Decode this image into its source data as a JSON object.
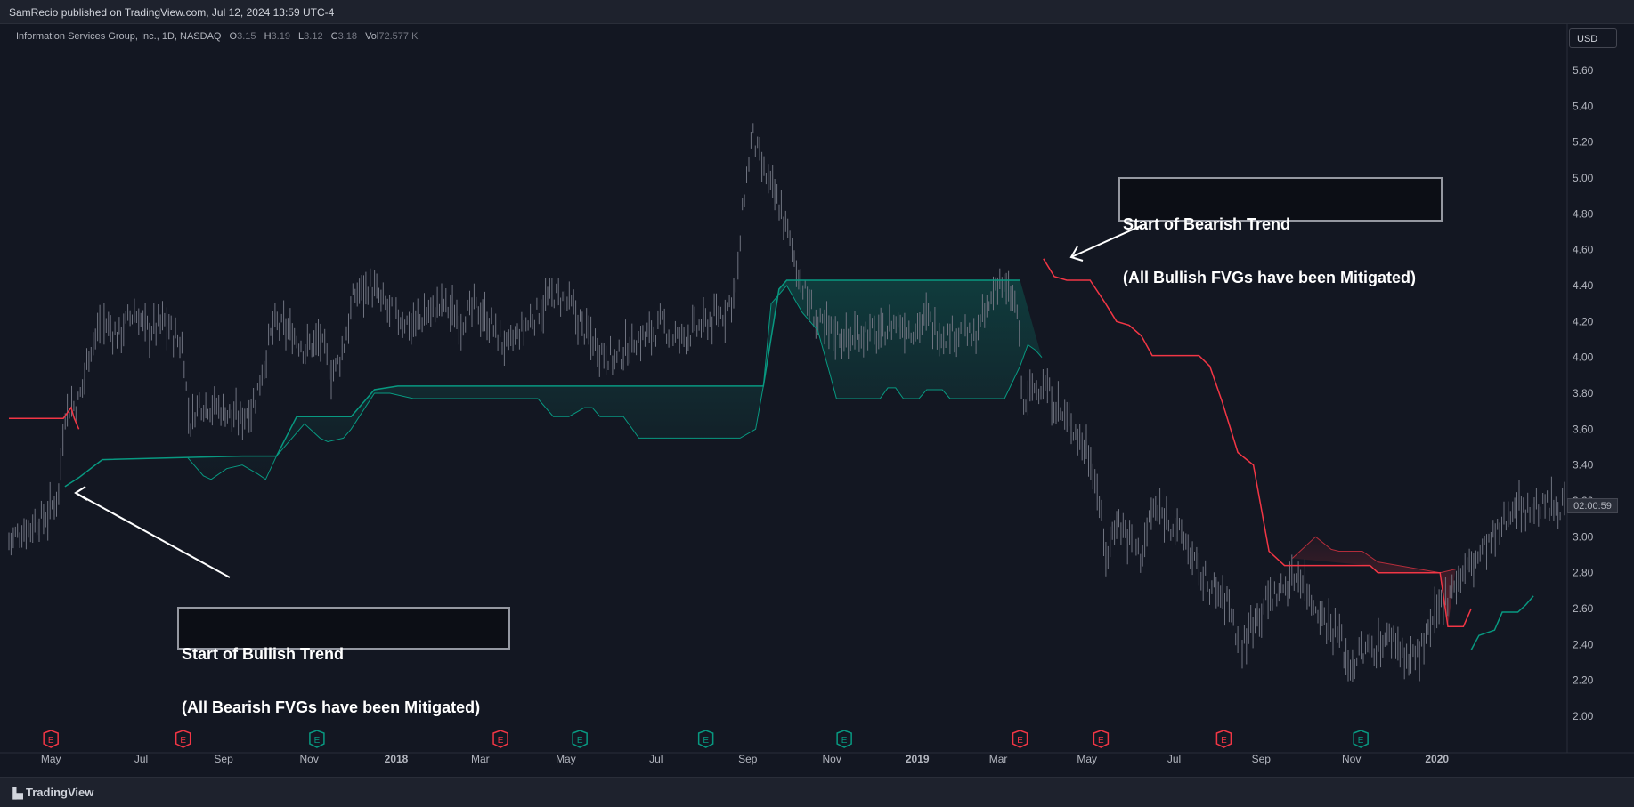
{
  "header": {
    "published_line": "SamRecio published on TradingView.com, Jul 12, 2024 13:59 UTC-4"
  },
  "legend": {
    "symbol": "Information Services Group, Inc., 1D, NASDAQ",
    "open_label": "O",
    "open": "3.15",
    "high_label": "H",
    "high": "3.19",
    "low_label": "L",
    "low": "3.12",
    "close_label": "C",
    "close": "3.18",
    "vol_label": "Vol",
    "vol": "72.577 K"
  },
  "price_scale": {
    "currency": "USD",
    "countdown": "02:00:59"
  },
  "annotations": {
    "bullish_line1": "Start of Bullish Trend",
    "bullish_line2": "(All Bearish FVGs have been Mitigated)",
    "bearish_line1": "Start of Bearish Trend",
    "bearish_line2": "(All Bullish FVGs have been Mitigated)"
  },
  "footer": {
    "brand": "TradingView"
  },
  "colors": {
    "bull": "#089981",
    "bear": "#f23645",
    "candle": "#6f7380",
    "background": "#131722"
  },
  "chart_data": {
    "type": "line",
    "title": "",
    "ylim": [
      1.9,
      5.75
    ],
    "y_ticks": [
      "2.00",
      "2.20",
      "2.40",
      "2.60",
      "2.80",
      "3.00",
      "3.20",
      "3.40",
      "3.60",
      "3.80",
      "4.00",
      "4.20",
      "4.40",
      "4.60",
      "4.80",
      "5.00",
      "5.20",
      "5.40",
      "5.60"
    ],
    "x_ticks": [
      {
        "label": "May",
        "pos": 0.027,
        "bold": false
      },
      {
        "label": "Jul",
        "pos": 0.085,
        "bold": false
      },
      {
        "label": "Sep",
        "pos": 0.138,
        "bold": false
      },
      {
        "label": "Nov",
        "pos": 0.193,
        "bold": false
      },
      {
        "label": "2018",
        "pos": 0.249,
        "bold": true
      },
      {
        "label": "Mar",
        "pos": 0.303,
        "bold": false
      },
      {
        "label": "May",
        "pos": 0.358,
        "bold": false
      },
      {
        "label": "Jul",
        "pos": 0.416,
        "bold": false
      },
      {
        "label": "Sep",
        "pos": 0.475,
        "bold": false
      },
      {
        "label": "Nov",
        "pos": 0.529,
        "bold": false
      },
      {
        "label": "2019",
        "pos": 0.584,
        "bold": true
      },
      {
        "label": "Mar",
        "pos": 0.636,
        "bold": false
      },
      {
        "label": "May",
        "pos": 0.693,
        "bold": false
      },
      {
        "label": "Jul",
        "pos": 0.749,
        "bold": false
      },
      {
        "label": "Sep",
        "pos": 0.805,
        "bold": false
      },
      {
        "label": "Nov",
        "pos": 0.863,
        "bold": false
      },
      {
        "label": "2020",
        "pos": 0.918,
        "bold": true
      }
    ],
    "earnings": [
      {
        "pos": 0.027,
        "type": "miss"
      },
      {
        "pos": 0.112,
        "type": "miss"
      },
      {
        "pos": 0.198,
        "type": "beat"
      },
      {
        "pos": 0.316,
        "type": "miss"
      },
      {
        "pos": 0.367,
        "type": "beat"
      },
      {
        "pos": 0.448,
        "type": "beat"
      },
      {
        "pos": 0.537,
        "type": "beat"
      },
      {
        "pos": 0.65,
        "type": "miss"
      },
      {
        "pos": 0.702,
        "type": "miss"
      },
      {
        "pos": 0.781,
        "type": "miss"
      },
      {
        "pos": 0.869,
        "type": "beat"
      }
    ],
    "earnings_label": "E",
    "price_path": [
      [
        0.0,
        2.98
      ],
      [
        0.012,
        3.05
      ],
      [
        0.025,
        3.12
      ],
      [
        0.032,
        3.25
      ],
      [
        0.036,
        3.7
      ],
      [
        0.045,
        3.75
      ],
      [
        0.052,
        4.05
      ],
      [
        0.06,
        4.2
      ],
      [
        0.07,
        4.12
      ],
      [
        0.08,
        4.25
      ],
      [
        0.09,
        4.15
      ],
      [
        0.1,
        4.2
      ],
      [
        0.112,
        4.05
      ],
      [
        0.116,
        3.62
      ],
      [
        0.122,
        3.75
      ],
      [
        0.135,
        3.72
      ],
      [
        0.148,
        3.65
      ],
      [
        0.158,
        3.75
      ],
      [
        0.17,
        4.18
      ],
      [
        0.18,
        4.15
      ],
      [
        0.19,
        4.05
      ],
      [
        0.2,
        4.1
      ],
      [
        0.208,
        3.9
      ],
      [
        0.215,
        4.05
      ],
      [
        0.222,
        4.35
      ],
      [
        0.232,
        4.4
      ],
      [
        0.24,
        4.3
      ],
      [
        0.25,
        4.22
      ],
      [
        0.26,
        4.18
      ],
      [
        0.27,
        4.25
      ],
      [
        0.28,
        4.3
      ],
      [
        0.29,
        4.2
      ],
      [
        0.3,
        4.28
      ],
      [
        0.31,
        4.18
      ],
      [
        0.32,
        4.05
      ],
      [
        0.33,
        4.15
      ],
      [
        0.34,
        4.25
      ],
      [
        0.35,
        4.35
      ],
      [
        0.36,
        4.3
      ],
      [
        0.37,
        4.15
      ],
      [
        0.38,
        4.05
      ],
      [
        0.39,
        3.98
      ],
      [
        0.4,
        4.08
      ],
      [
        0.41,
        4.12
      ],
      [
        0.42,
        4.18
      ],
      [
        0.43,
        4.1
      ],
      [
        0.44,
        4.15
      ],
      [
        0.45,
        4.2
      ],
      [
        0.46,
        4.25
      ],
      [
        0.468,
        4.4
      ],
      [
        0.472,
        4.85
      ],
      [
        0.478,
        5.25
      ],
      [
        0.484,
        5.05
      ],
      [
        0.49,
        4.95
      ],
      [
        0.497,
        4.8
      ],
      [
        0.505,
        4.55
      ],
      [
        0.512,
        4.35
      ],
      [
        0.52,
        4.18
      ],
      [
        0.53,
        4.15
      ],
      [
        0.54,
        4.1
      ],
      [
        0.55,
        4.15
      ],
      [
        0.56,
        4.12
      ],
      [
        0.57,
        4.2
      ],
      [
        0.58,
        4.15
      ],
      [
        0.59,
        4.22
      ],
      [
        0.6,
        4.12
      ],
      [
        0.61,
        4.15
      ],
      [
        0.62,
        4.1
      ],
      [
        0.63,
        4.28
      ],
      [
        0.636,
        4.45
      ],
      [
        0.642,
        4.35
      ],
      [
        0.648,
        4.28
      ],
      [
        0.652,
        3.7
      ],
      [
        0.657,
        3.82
      ],
      [
        0.665,
        3.85
      ],
      [
        0.675,
        3.7
      ],
      [
        0.685,
        3.6
      ],
      [
        0.695,
        3.45
      ],
      [
        0.7,
        3.25
      ],
      [
        0.705,
        2.88
      ],
      [
        0.712,
        3.1
      ],
      [
        0.72,
        3.0
      ],
      [
        0.728,
        2.9
      ],
      [
        0.735,
        3.15
      ],
      [
        0.745,
        3.1
      ],
      [
        0.755,
        3.0
      ],
      [
        0.765,
        2.8
      ],
      [
        0.775,
        2.7
      ],
      [
        0.785,
        2.62
      ],
      [
        0.792,
        2.35
      ],
      [
        0.8,
        2.55
      ],
      [
        0.81,
        2.65
      ],
      [
        0.82,
        2.72
      ],
      [
        0.83,
        2.8
      ],
      [
        0.835,
        2.68
      ],
      [
        0.845,
        2.55
      ],
      [
        0.855,
        2.45
      ],
      [
        0.862,
        2.28
      ],
      [
        0.87,
        2.35
      ],
      [
        0.88,
        2.4
      ],
      [
        0.89,
        2.45
      ],
      [
        0.9,
        2.3
      ],
      [
        0.91,
        2.4
      ],
      [
        0.915,
        2.5
      ],
      [
        0.92,
        2.62
      ],
      [
        0.93,
        2.75
      ],
      [
        0.94,
        2.85
      ],
      [
        0.95,
        2.95
      ],
      [
        0.96,
        3.05
      ],
      [
        0.968,
        3.2
      ],
      [
        0.975,
        3.15
      ],
      [
        1.0,
        3.18
      ]
    ],
    "bull_trail": [
      [
        0.036,
        3.28
      ],
      [
        0.045,
        3.33
      ],
      [
        0.06,
        3.43
      ],
      [
        0.15,
        3.45
      ],
      [
        0.172,
        3.45
      ],
      [
        0.185,
        3.67
      ],
      [
        0.22,
        3.67
      ],
      [
        0.235,
        3.82
      ],
      [
        0.25,
        3.84
      ],
      [
        0.485,
        3.84
      ],
      [
        0.495,
        4.38
      ],
      [
        0.5,
        4.43
      ],
      [
        0.65,
        4.43
      ]
    ],
    "bull_trail_lower": [
      [
        0.115,
        3.44
      ],
      [
        0.125,
        3.34
      ],
      [
        0.13,
        3.32
      ],
      [
        0.14,
        3.38
      ],
      [
        0.15,
        3.4
      ],
      [
        0.16,
        3.35
      ],
      [
        0.165,
        3.32
      ],
      [
        0.172,
        3.45
      ],
      [
        0.19,
        3.63
      ],
      [
        0.2,
        3.55
      ],
      [
        0.205,
        3.53
      ],
      [
        0.215,
        3.55
      ],
      [
        0.22,
        3.6
      ],
      [
        0.235,
        3.8
      ],
      [
        0.245,
        3.8
      ],
      [
        0.26,
        3.77
      ],
      [
        0.34,
        3.77
      ],
      [
        0.35,
        3.67
      ],
      [
        0.36,
        3.67
      ],
      [
        0.37,
        3.72
      ],
      [
        0.375,
        3.72
      ],
      [
        0.38,
        3.67
      ],
      [
        0.395,
        3.67
      ],
      [
        0.405,
        3.55
      ],
      [
        0.47,
        3.55
      ],
      [
        0.48,
        3.6
      ],
      [
        0.485,
        3.84
      ],
      [
        0.49,
        4.3
      ],
      [
        0.5,
        4.4
      ],
      [
        0.51,
        4.25
      ],
      [
        0.52,
        4.15
      ],
      [
        0.528,
        3.9
      ],
      [
        0.532,
        3.77
      ],
      [
        0.56,
        3.77
      ],
      [
        0.565,
        3.83
      ],
      [
        0.57,
        3.83
      ],
      [
        0.575,
        3.77
      ],
      [
        0.585,
        3.77
      ],
      [
        0.59,
        3.82
      ],
      [
        0.6,
        3.82
      ],
      [
        0.605,
        3.77
      ],
      [
        0.64,
        3.77
      ],
      [
        0.65,
        3.95
      ],
      [
        0.655,
        4.07
      ],
      [
        0.66,
        4.04
      ],
      [
        0.664,
        4.0
      ]
    ],
    "bear_trail": [
      [
        0.0,
        3.66
      ],
      [
        0.035,
        3.66
      ],
      [
        0.04,
        3.72
      ],
      [
        0.042,
        3.66
      ],
      [
        0.045,
        3.6
      ]
    ],
    "bear_trail_main": [
      [
        0.665,
        4.55
      ],
      [
        0.672,
        4.45
      ],
      [
        0.68,
        4.43
      ],
      [
        0.695,
        4.43
      ],
      [
        0.705,
        4.3
      ],
      [
        0.712,
        4.2
      ],
      [
        0.72,
        4.18
      ],
      [
        0.728,
        4.12
      ],
      [
        0.735,
        4.01
      ],
      [
        0.765,
        4.01
      ],
      [
        0.772,
        3.95
      ],
      [
        0.78,
        3.75
      ],
      [
        0.79,
        3.47
      ],
      [
        0.8,
        3.4
      ],
      [
        0.81,
        2.92
      ],
      [
        0.82,
        2.84
      ],
      [
        0.875,
        2.84
      ],
      [
        0.88,
        2.8
      ],
      [
        0.92,
        2.8
      ],
      [
        0.925,
        2.5
      ],
      [
        0.935,
        2.5
      ],
      [
        0.94,
        2.6
      ]
    ],
    "bear_trail_upper": [
      [
        0.825,
        2.88
      ],
      [
        0.835,
        2.96
      ],
      [
        0.84,
        3.0
      ],
      [
        0.85,
        2.93
      ],
      [
        0.855,
        2.92
      ],
      [
        0.87,
        2.92
      ],
      [
        0.88,
        2.86
      ],
      [
        0.92,
        2.8
      ],
      [
        0.93,
        2.82
      ]
    ],
    "bull_trail_late": [
      [
        0.94,
        2.37
      ],
      [
        0.945,
        2.45
      ],
      [
        0.955,
        2.48
      ],
      [
        0.96,
        2.58
      ],
      [
        0.97,
        2.58
      ],
      [
        0.975,
        2.62
      ],
      [
        0.98,
        2.67
      ]
    ]
  }
}
